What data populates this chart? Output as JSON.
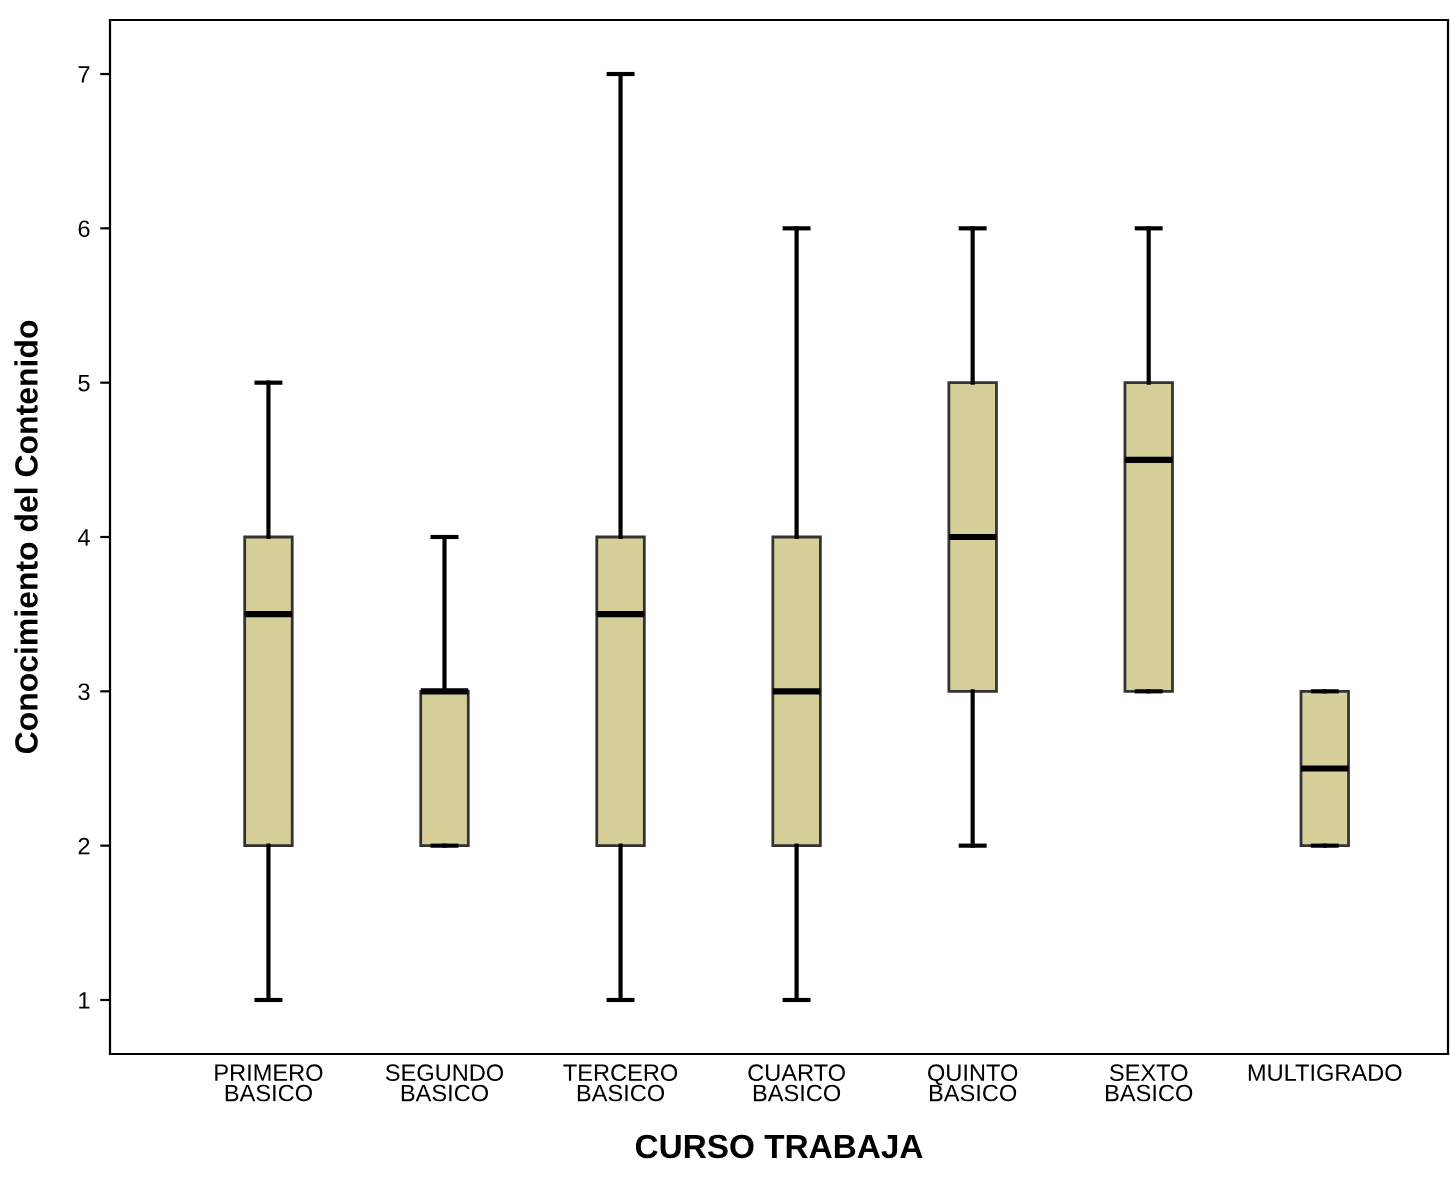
{
  "chart_data": {
    "type": "box",
    "xlabel": "CURSO TRABAJA",
    "ylabel": "Conocimiento del Contenido",
    "categories": [
      "PRIMERO\nBASICO",
      "SEGUNDO\nBASICO",
      "TERCERO\nBASICO",
      "CUARTO\nBASICO",
      "QUINTO\nBASICO",
      "SEXTO\nBASICO",
      "MULTIGRADO"
    ],
    "color": "#d6cf9a",
    "boxes": [
      {
        "low": 1,
        "q1": 2,
        "median": 3.5,
        "q3": 4,
        "high": 5
      },
      {
        "low": 2,
        "q1": 2,
        "median": 3,
        "q3": 3,
        "high": 4
      },
      {
        "low": 1,
        "q1": 2,
        "median": 3.5,
        "q3": 4,
        "high": 7
      },
      {
        "low": 1,
        "q1": 2,
        "median": 3,
        "q3": 4,
        "high": 6
      },
      {
        "low": 2,
        "q1": 3,
        "median": 4,
        "q3": 5,
        "high": 6
      },
      {
        "low": 3,
        "q1": 3,
        "median": 4.5,
        "q3": 5,
        "high": 6
      },
      {
        "low": 2,
        "q1": 2,
        "median": 2.5,
        "q3": 3,
        "high": 3
      }
    ],
    "ylim": [
      0.65,
      7.35
    ],
    "yticks": [
      1,
      2,
      3,
      4,
      5,
      6,
      7
    ],
    "grid": false
  }
}
